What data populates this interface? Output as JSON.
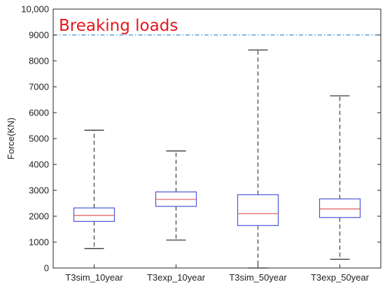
{
  "chart_data": {
    "type": "box",
    "title": "",
    "xlabel": "",
    "ylabel": "Force(KN)",
    "ylim": [
      0,
      10000
    ],
    "yticks": [
      0,
      1000,
      2000,
      3000,
      4000,
      5000,
      6000,
      7000,
      8000,
      9000
    ],
    "yticks_labels": [
      "0",
      "1000",
      "2000",
      "3000",
      "4000",
      "5000",
      "6000",
      "7000",
      "8000",
      "9000"
    ],
    "ytop_label": "10,000",
    "grid": false,
    "categories": [
      "T3sim_10year",
      "T3exp_10year",
      "T3sim_50year",
      "T3exp_50year"
    ],
    "boxes": [
      {
        "min": 750,
        "q1": 1800,
        "median": 2030,
        "q3": 2320,
        "max": 5320
      },
      {
        "min": 1080,
        "q1": 2380,
        "median": 2650,
        "q3": 2940,
        "max": 4520
      },
      {
        "min": 0,
        "q1": 1640,
        "median": 2100,
        "q3": 2830,
        "max": 8420
      },
      {
        "min": 340,
        "q1": 1950,
        "median": 2280,
        "q3": 2670,
        "max": 6650
      }
    ],
    "reference_line": {
      "value": 9000,
      "label": "Breaking loads",
      "color": "#3a8fd4"
    },
    "colors": {
      "box": "#4a56d8",
      "median": "#e05a5a",
      "whisker": "#333333",
      "label": "#e8141b"
    }
  }
}
